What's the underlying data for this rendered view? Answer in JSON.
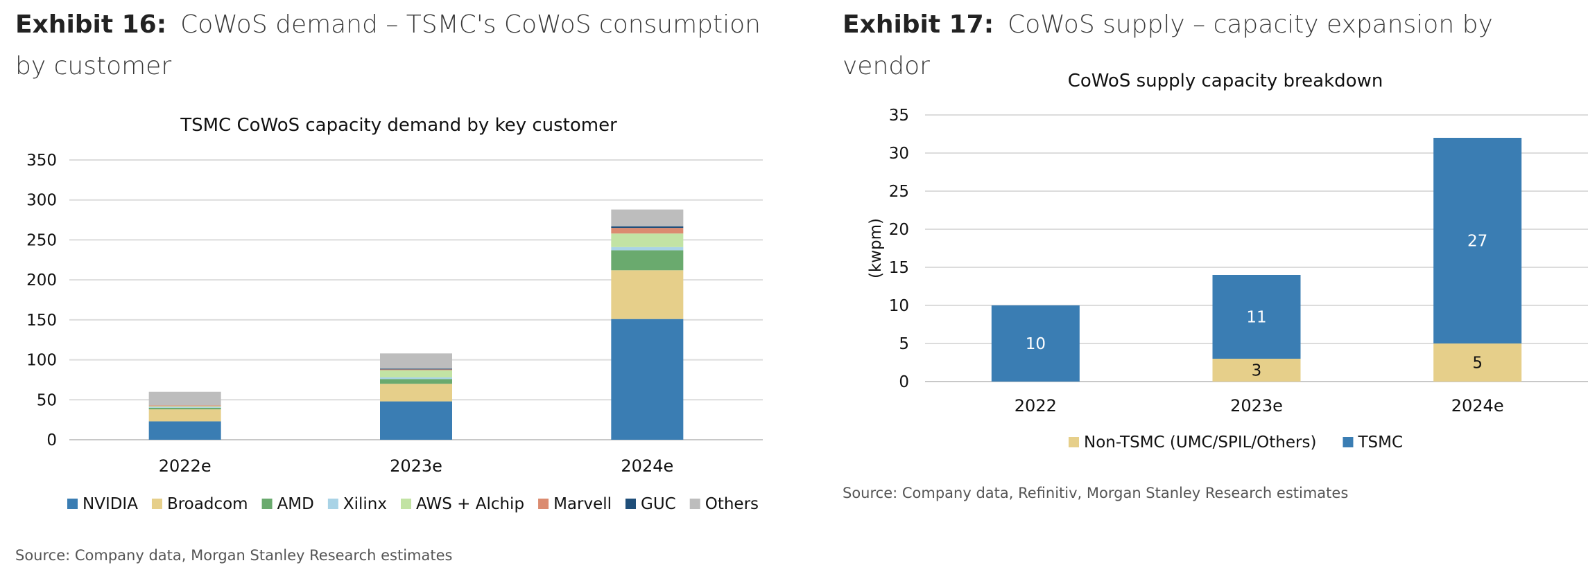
{
  "exhibit16": {
    "number": "Exhibit 16:",
    "title": "CoWoS demand – TSMC's CoWoS consumption by customer",
    "source": "Source: Company data, Morgan Stanley Research estimates"
  },
  "exhibit17": {
    "number": "Exhibit 17:",
    "title": "CoWoS supply – capacity expansion by vendor",
    "source": "Source: Company data, Refinitiv, Morgan Stanley Research estimates"
  },
  "chart_data": [
    {
      "type": "bar",
      "stacked": true,
      "title": "TSMC CoWoS capacity demand by key customer",
      "xlabel": "",
      "ylabel": "",
      "categories": [
        "2022e",
        "2023e",
        "2024e"
      ],
      "ylim": [
        0,
        350
      ],
      "yticks": [
        0,
        50,
        100,
        150,
        200,
        250,
        300,
        350
      ],
      "grid": true,
      "legend_position": "bottom",
      "series": [
        {
          "name": "NVIDIA",
          "color": "#3a7db3",
          "values": [
            23,
            48,
            151
          ]
        },
        {
          "name": "Broadcom",
          "color": "#e6cf8a",
          "values": [
            15,
            22,
            61
          ]
        },
        {
          "name": "AMD",
          "color": "#6aaa6e",
          "values": [
            2,
            6,
            25
          ]
        },
        {
          "name": "Xilinx",
          "color": "#a9d3e6",
          "values": [
            1,
            2,
            4
          ]
        },
        {
          "name": "AWS + Alchip",
          "color": "#c2e3a4",
          "values": [
            1,
            9,
            17
          ]
        },
        {
          "name": "Marvell",
          "color": "#db8b70",
          "values": [
            1,
            1,
            7
          ]
        },
        {
          "name": "GUC",
          "color": "#1f4e79",
          "values": [
            0,
            1,
            2
          ]
        },
        {
          "name": "Others",
          "color": "#bdbdbd",
          "values": [
            17,
            19,
            21
          ]
        }
      ]
    },
    {
      "type": "bar",
      "stacked": true,
      "title": "CoWoS supply capacity breakdown",
      "xlabel": "",
      "ylabel": "(kwpm)",
      "categories": [
        "2022",
        "2023e",
        "2024e"
      ],
      "ylim": [
        0,
        35
      ],
      "yticks": [
        0,
        5,
        10,
        15,
        20,
        25,
        30,
        35
      ],
      "grid": true,
      "legend_position": "bottom",
      "series": [
        {
          "name": "Non-TSMC (UMC/SPIL/Others)",
          "color": "#e6cf8a",
          "label_color": "#111111",
          "values": [
            0,
            3,
            5
          ],
          "labels": [
            "",
            "3",
            "5"
          ]
        },
        {
          "name": "TSMC",
          "color": "#3a7db3",
          "label_color": "#ffffff",
          "values": [
            10,
            11,
            27
          ],
          "labels": [
            "10",
            "11",
            "27"
          ]
        }
      ]
    }
  ]
}
